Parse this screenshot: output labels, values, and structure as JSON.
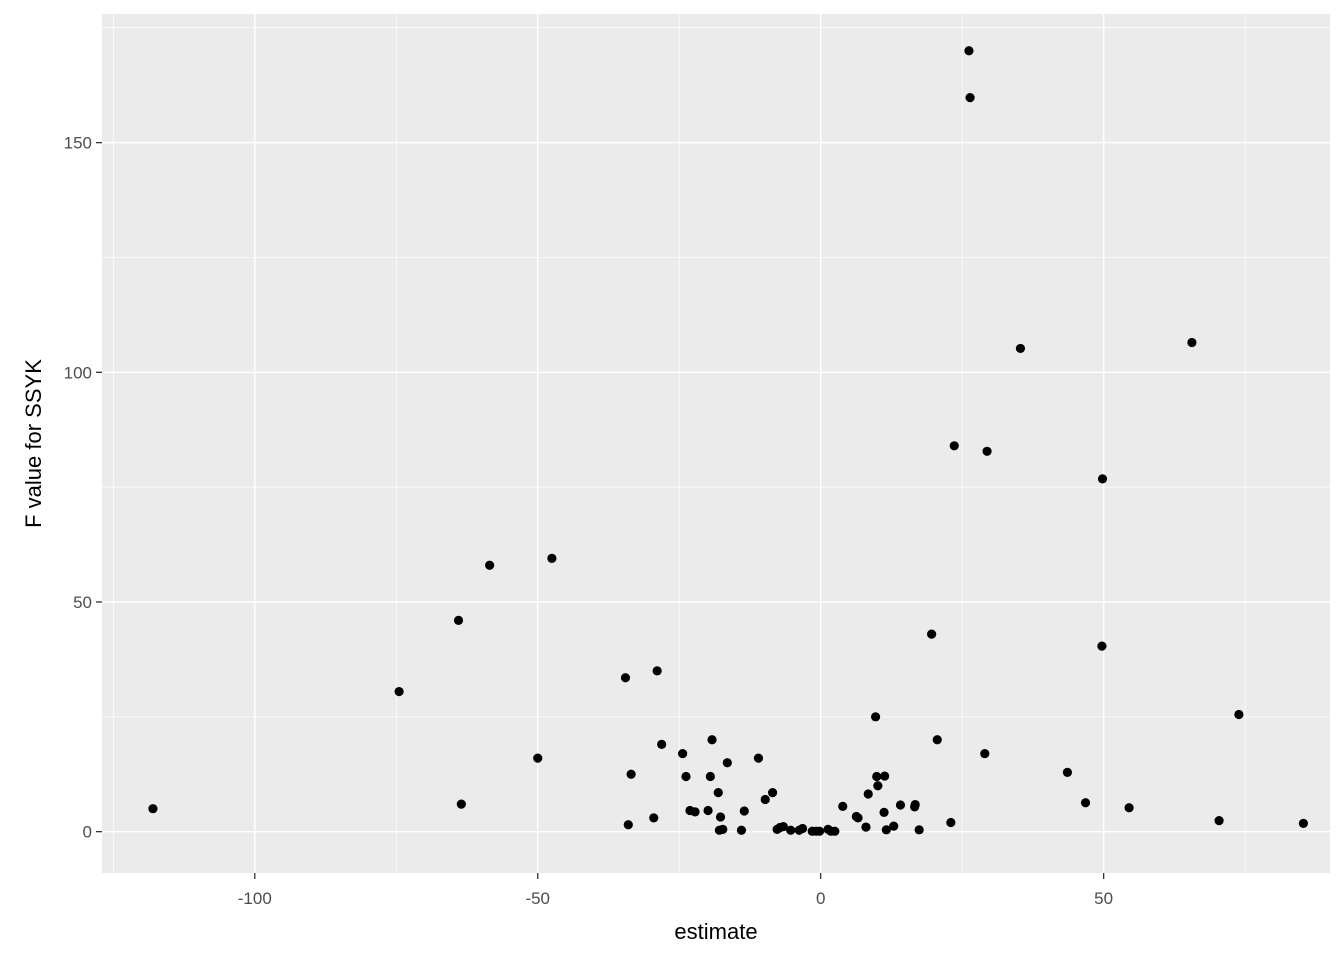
{
  "chart_data": {
    "type": "scatter",
    "xlabel": "estimate",
    "ylabel": "F value for SSYK",
    "xlim": [
      -127,
      90
    ],
    "ylim": [
      -9,
      178
    ],
    "x_ticks": [
      -100,
      -50,
      0,
      50
    ],
    "x_tick_labels": [
      "-100",
      "-50",
      "0",
      "50"
    ],
    "x_minor_ticks": [
      -125,
      -75,
      -25,
      25,
      75
    ],
    "y_ticks": [
      0,
      50,
      100,
      150
    ],
    "y_tick_labels": [
      "0",
      "50",
      "100",
      "150"
    ],
    "y_minor_ticks": [
      25,
      75,
      125,
      175
    ],
    "grid": true,
    "colors": {
      "panel": "#ebebeb",
      "grid": "#ffffff",
      "point": "#000000"
    },
    "points": [
      {
        "x": -118,
        "y": 5
      },
      {
        "x": -74.5,
        "y": 30.5
      },
      {
        "x": -64,
        "y": 46
      },
      {
        "x": -63.5,
        "y": 6
      },
      {
        "x": -58.5,
        "y": 58
      },
      {
        "x": -50,
        "y": 16
      },
      {
        "x": -47.5,
        "y": 59.5
      },
      {
        "x": -34.5,
        "y": 33.5
      },
      {
        "x": -34,
        "y": 1.5
      },
      {
        "x": -33.5,
        "y": 12.5
      },
      {
        "x": -29.5,
        "y": 3
      },
      {
        "x": -28.9,
        "y": 35
      },
      {
        "x": -28.1,
        "y": 19
      },
      {
        "x": -24.4,
        "y": 17
      },
      {
        "x": -23.8,
        "y": 12
      },
      {
        "x": -23.1,
        "y": 4.6
      },
      {
        "x": -22.2,
        "y": 4.3
      },
      {
        "x": -19.9,
        "y": 4.6
      },
      {
        "x": -19.5,
        "y": 12
      },
      {
        "x": -19.2,
        "y": 20
      },
      {
        "x": -18.1,
        "y": 8.5
      },
      {
        "x": -17.9,
        "y": 0.3
      },
      {
        "x": -17.7,
        "y": 3.2
      },
      {
        "x": -17.3,
        "y": 0.5
      },
      {
        "x": -16.5,
        "y": 15
      },
      {
        "x": -14,
        "y": 0.3
      },
      {
        "x": -13.5,
        "y": 4.5
      },
      {
        "x": -11,
        "y": 16
      },
      {
        "x": -9.8,
        "y": 7
      },
      {
        "x": -8.5,
        "y": 8.5
      },
      {
        "x": -7.7,
        "y": 0.5
      },
      {
        "x": -7.2,
        "y": 0.9
      },
      {
        "x": -6.6,
        "y": 1.1
      },
      {
        "x": -5.3,
        "y": 0.3
      },
      {
        "x": -3.8,
        "y": 0.3
      },
      {
        "x": -3.2,
        "y": 0.7
      },
      {
        "x": -1.5,
        "y": 0.1
      },
      {
        "x": -0.8,
        "y": 0.1
      },
      {
        "x": -0.2,
        "y": 0.1
      },
      {
        "x": 1.3,
        "y": 0.5
      },
      {
        "x": 1.8,
        "y": 0.1
      },
      {
        "x": 2.5,
        "y": 0.1
      },
      {
        "x": 3.9,
        "y": 5.5
      },
      {
        "x": 6.3,
        "y": 3.3
      },
      {
        "x": 6.6,
        "y": 3
      },
      {
        "x": 8,
        "y": 1
      },
      {
        "x": 8.4,
        "y": 8.2
      },
      {
        "x": 9.7,
        "y": 25
      },
      {
        "x": 9.9,
        "y": 12
      },
      {
        "x": 10.1,
        "y": 10
      },
      {
        "x": 11.2,
        "y": 4.2
      },
      {
        "x": 11.3,
        "y": 12.1
      },
      {
        "x": 11.6,
        "y": 0.4
      },
      {
        "x": 12.9,
        "y": 1.2
      },
      {
        "x": 14.1,
        "y": 5.8
      },
      {
        "x": 16.6,
        "y": 5.4
      },
      {
        "x": 16.7,
        "y": 5.9
      },
      {
        "x": 17.4,
        "y": 0.4
      },
      {
        "x": 19.6,
        "y": 43
      },
      {
        "x": 20.6,
        "y": 20
      },
      {
        "x": 23,
        "y": 2
      },
      {
        "x": 23.6,
        "y": 84
      },
      {
        "x": 26.2,
        "y": 170
      },
      {
        "x": 26.4,
        "y": 159.8
      },
      {
        "x": 29,
        "y": 17
      },
      {
        "x": 29.4,
        "y": 82.8
      },
      {
        "x": 35.3,
        "y": 105.2
      },
      {
        "x": 43.6,
        "y": 12.9
      },
      {
        "x": 46.8,
        "y": 6.3
      },
      {
        "x": 49.7,
        "y": 40.4
      },
      {
        "x": 49.8,
        "y": 76.8
      },
      {
        "x": 54.5,
        "y": 5.2
      },
      {
        "x": 65.6,
        "y": 106.5
      },
      {
        "x": 70.4,
        "y": 2.4
      },
      {
        "x": 73.9,
        "y": 25.5
      },
      {
        "x": 85.3,
        "y": 1.8
      }
    ]
  }
}
